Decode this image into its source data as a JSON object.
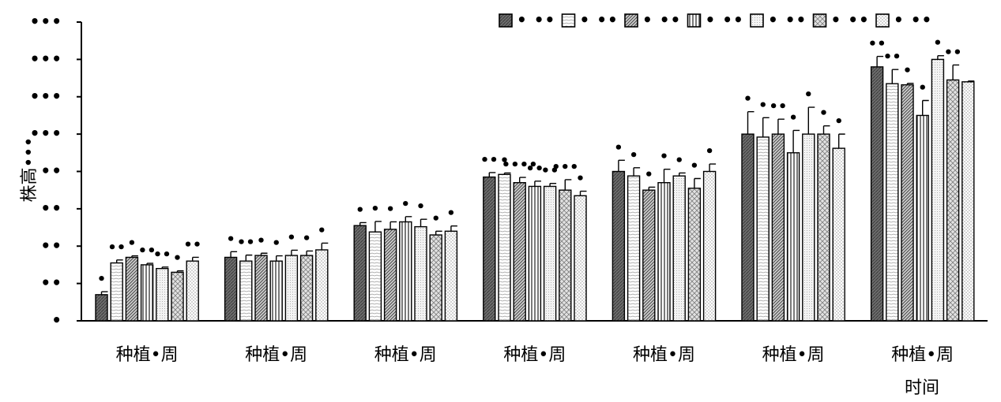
{
  "chart_data": {
    "type": "bar",
    "title": "",
    "ylabel": "株高•••",
    "xlabel": "时间",
    "categories": [
      "种植•周",
      "种植•周",
      "种植•周",
      "种植•周",
      "种植•周",
      "种植•周",
      "种植•周"
    ],
    "ytick_labels": [
      "•",
      "••",
      "••",
      "••",
      "••",
      "•••",
      "•••",
      "•••",
      "•••"
    ],
    "ylim": [
      0,
      8
    ],
    "grid": false,
    "legend_position": "top-right",
    "series": [
      {
        "name": "• ••",
        "pattern": "p0",
        "values": [
          0.7,
          1.7,
          2.55,
          3.85,
          4.0,
          5.0,
          6.8
        ],
        "errors": [
          0.08,
          0.15,
          0.08,
          0.12,
          0.3,
          0.6,
          0.28
        ],
        "labels": [
          "•",
          "•",
          "•",
          "••",
          "•",
          "•",
          "••"
        ]
      },
      {
        "name": "• ••",
        "pattern": "p1",
        "values": [
          1.55,
          1.6,
          2.38,
          3.92,
          3.88,
          4.92,
          6.35
        ],
        "errors": [
          0.08,
          0.16,
          0.28,
          0.04,
          0.22,
          0.52,
          0.38
        ],
        "labels": [
          "••",
          "••",
          "•",
          "•",
          "•",
          "•",
          "••"
        ]
      },
      {
        "name": "• ••",
        "pattern": "p2",
        "values": [
          1.7,
          1.75,
          2.45,
          3.7,
          3.5,
          5.0,
          6.32
        ],
        "errors": [
          0.04,
          0.06,
          0.2,
          0.14,
          0.08,
          0.4,
          0.04
        ],
        "labels": [
          "•",
          "•",
          "•",
          "••••",
          "•",
          "••",
          "•"
        ]
      },
      {
        "name": "• ••",
        "pattern": "p3",
        "values": [
          1.5,
          1.6,
          2.65,
          3.6,
          3.7,
          4.5,
          5.5
        ],
        "errors": [
          0.04,
          0.14,
          0.14,
          0.14,
          0.36,
          0.6,
          0.4
        ],
        "labels": [
          "••",
          "•",
          "•",
          "••",
          "•",
          "•",
          "•"
        ]
      },
      {
        "name": "• ••",
        "pattern": "p4",
        "values": [
          1.4,
          1.75,
          2.52,
          3.6,
          3.88,
          5.0,
          7.0
        ],
        "errors": [
          0.04,
          0.14,
          0.2,
          0.08,
          0.08,
          0.72,
          0.1
        ],
        "labels": [
          "••",
          "•",
          "•",
          "••",
          "•",
          "•",
          "•"
        ]
      },
      {
        "name": "• ••",
        "pattern": "p5",
        "values": [
          1.3,
          1.75,
          2.3,
          3.5,
          3.55,
          5.0,
          6.45
        ],
        "errors": [
          0.04,
          0.12,
          0.1,
          0.28,
          0.26,
          0.22,
          0.4
        ],
        "labels": [
          "•",
          "•",
          "•",
          "•••",
          "•",
          "•",
          "••"
        ]
      },
      {
        "name": "• ••",
        "pattern": "p6",
        "values": [
          1.6,
          1.9,
          2.4,
          3.35,
          4.0,
          4.62,
          6.4
        ],
        "errors": [
          0.1,
          0.18,
          0.14,
          0.12,
          0.2,
          0.38,
          0.02
        ],
        "labels": [
          "••",
          "•",
          "•",
          "•",
          "•",
          "•",
          ""
        ]
      }
    ]
  }
}
